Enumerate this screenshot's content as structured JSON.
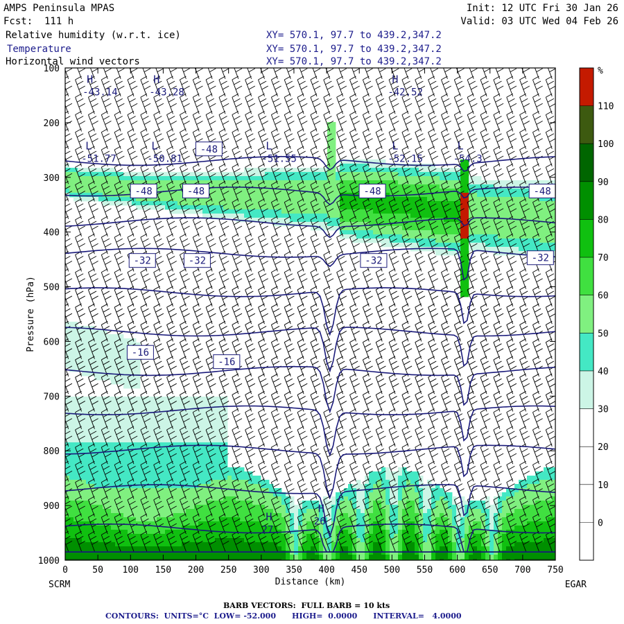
{
  "header": {
    "model": "AMPS Peninsula MPAS",
    "fcst": "Fcst:  111 h",
    "init": "Init: 12 UTC Fri 30 Jan 26",
    "valid": "Valid: 03 UTC Wed 04 Feb 26",
    "fields": [
      {
        "name": "Relative humidity (w.r.t. ice)",
        "xy": "XY= 570.1, 97.7 to 439.2,347.2"
      },
      {
        "name": "Temperature",
        "xy": "XY= 570.1, 97.7 to 439.2,347.2"
      },
      {
        "name": "Horizontal wind vectors",
        "xy": "XY= 570.1, 97.7 to 439.2,347.2"
      }
    ]
  },
  "footer": {
    "barb": "BARB VECTORS:  FULL BARB = 10 kts",
    "contours": "CONTOURS:  UNITS=°C  LOW= -52.000      HIGH=  0.0000      INTERVAL=   4.0000"
  },
  "colors": {
    "temp_contour": "#1a1a7a",
    "rh_scale": [
      "#ffffff",
      "#ffffff",
      "#ffffff",
      "#ffffff",
      "#ccf5e6",
      "#44e8c4",
      "#80f080",
      "#40e040",
      "#10c010",
      "#008f00",
      "#006600",
      "#3d5a10",
      "#c41a00"
    ]
  },
  "chart_data": {
    "type": "heatmap",
    "title": "",
    "xlabel": "Distance (km)",
    "ylabel": "Pressure (hPa)",
    "xlim": [
      0,
      750
    ],
    "ylim": [
      1000,
      100
    ],
    "x_ticks": [
      "0",
      "50",
      "100",
      "150",
      "200",
      "250",
      "300",
      "350",
      "400",
      "450",
      "500",
      "550",
      "600",
      "650",
      "700",
      "750"
    ],
    "y_ticks": [
      "100",
      "200",
      "300",
      "400",
      "500",
      "600",
      "700",
      "800",
      "900",
      "1000"
    ],
    "x_end_labels": {
      "left": "SCRM",
      "right": "EGAR"
    },
    "colorbar": {
      "unit": "%",
      "labels": [
        "110",
        "100",
        "90",
        "80",
        "70",
        "60",
        "50",
        "40",
        "30",
        "20",
        "10",
        "0"
      ]
    },
    "temperature_contour_levels": [
      -52,
      -48,
      -44,
      -40,
      -36,
      -32,
      -28,
      -24,
      -20,
      -16,
      -12,
      -8,
      -4,
      0
    ],
    "temperature_labels": [
      {
        "text": "-48",
        "x": 220,
        "p": 248
      },
      {
        "text": "-48",
        "x": 120,
        "p": 325
      },
      {
        "text": "-48",
        "x": 200,
        "p": 325
      },
      {
        "text": "-48",
        "x": 470,
        "p": 325
      },
      {
        "text": "-48",
        "x": 730,
        "p": 325
      },
      {
        "text": "-32",
        "x": 118,
        "p": 452
      },
      {
        "text": "-32",
        "x": 202,
        "p": 452
      },
      {
        "text": "-32",
        "x": 472,
        "p": 452
      },
      {
        "text": "-32",
        "x": 727,
        "p": 447
      },
      {
        "text": "-16",
        "x": 115,
        "p": 620
      },
      {
        "text": "-16",
        "x": 247,
        "p": 637
      }
    ],
    "extrema": [
      {
        "type": "H",
        "value": "-43.14",
        "x": 33,
        "p": 150
      },
      {
        "type": "H",
        "value": "-43.28",
        "x": 135,
        "p": 150
      },
      {
        "type": "H",
        "value": "-42.52",
        "x": 500,
        "p": 150
      },
      {
        "type": "L",
        "value": "-51.77",
        "x": 31,
        "p": 272
      },
      {
        "type": "L",
        "value": "-50.81",
        "x": 132,
        "p": 272
      },
      {
        "type": "L",
        "value": "-51.55",
        "x": 307,
        "p": 272
      },
      {
        "type": "L",
        "value": "-52.15",
        "x": 500,
        "p": 272
      },
      {
        "type": "L",
        "value": "-54.3",
        "x": 600,
        "p": 272
      },
      {
        "type": "H",
        "value": "27",
        "x": 307,
        "p": 950
      },
      {
        "type": "H",
        "value": "26",
        "x": 387,
        "p": 935
      }
    ],
    "rh_features": [
      {
        "name": "upper moist layer",
        "p_range": [
          270,
          500
        ],
        "rh": 50
      },
      {
        "name": "convective column peak",
        "x": 612,
        "p": 370,
        "rh": 110
      },
      {
        "name": "boundary layer moist",
        "p_range": [
          830,
          1000
        ],
        "rh": 80
      }
    ]
  }
}
